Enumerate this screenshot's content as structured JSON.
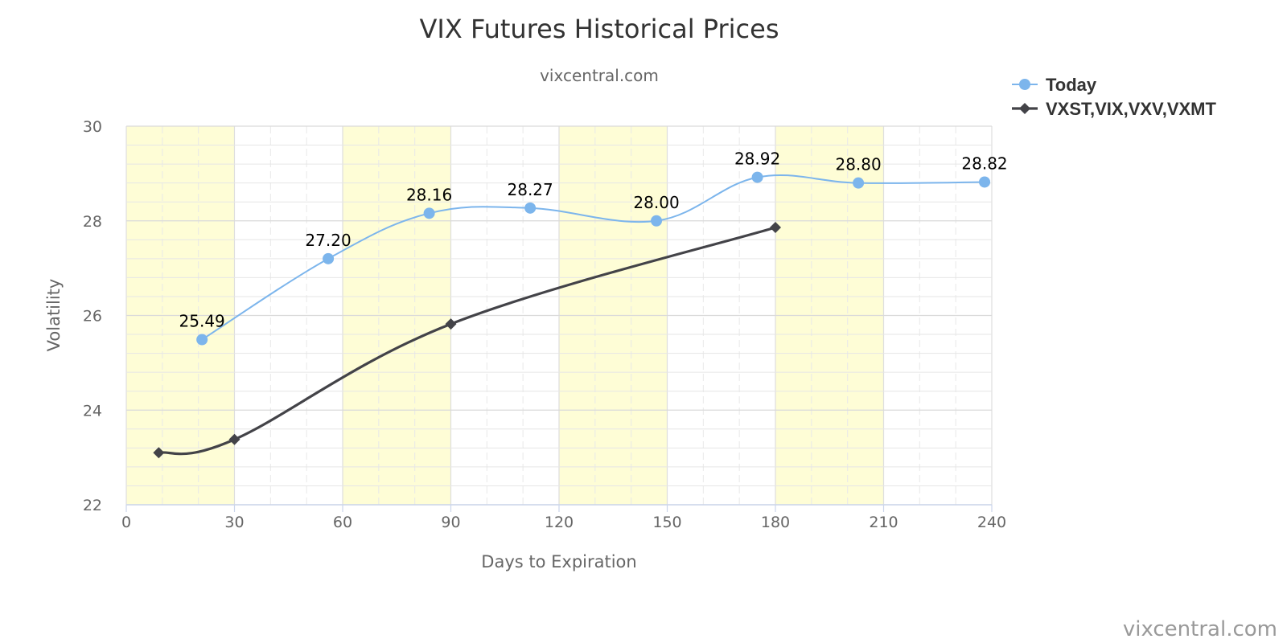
{
  "chart_data": {
    "type": "line",
    "title": "VIX Futures Historical Prices",
    "subtitle": "vixcentral.com",
    "xlabel": "Days to Expiration",
    "ylabel": "Volatility",
    "xlim": [
      0,
      240
    ],
    "ylim": [
      22,
      30
    ],
    "x_ticks": [
      0,
      30,
      60,
      90,
      120,
      150,
      180,
      210,
      240
    ],
    "y_ticks": [
      22,
      24,
      26,
      28,
      30
    ],
    "grid": true,
    "shaded_x_bands": [
      [
        0,
        30
      ],
      [
        60,
        90
      ],
      [
        120,
        150
      ],
      [
        180,
        210
      ]
    ],
    "legend_position": "top-right",
    "series": [
      {
        "name": "Today",
        "color": "#7cb5ec",
        "marker": "circle",
        "data_labels": true,
        "x": [
          21,
          56,
          84,
          112,
          147,
          175,
          203,
          238
        ],
        "values": [
          25.49,
          27.2,
          28.16,
          28.27,
          28.0,
          28.92,
          28.8,
          28.82
        ],
        "labels": [
          "25.49",
          "27.20",
          "28.16",
          "28.27",
          "28.00",
          "28.92",
          "28.80",
          "28.82"
        ]
      },
      {
        "name": "VXST,VIX,VXV,VXMT",
        "color": "#434348",
        "marker": "diamond",
        "data_labels": false,
        "x": [
          9,
          30,
          90,
          180
        ],
        "values": [
          23.1,
          23.38,
          25.82,
          27.86
        ]
      }
    ]
  },
  "credit": "vixcentral.com"
}
